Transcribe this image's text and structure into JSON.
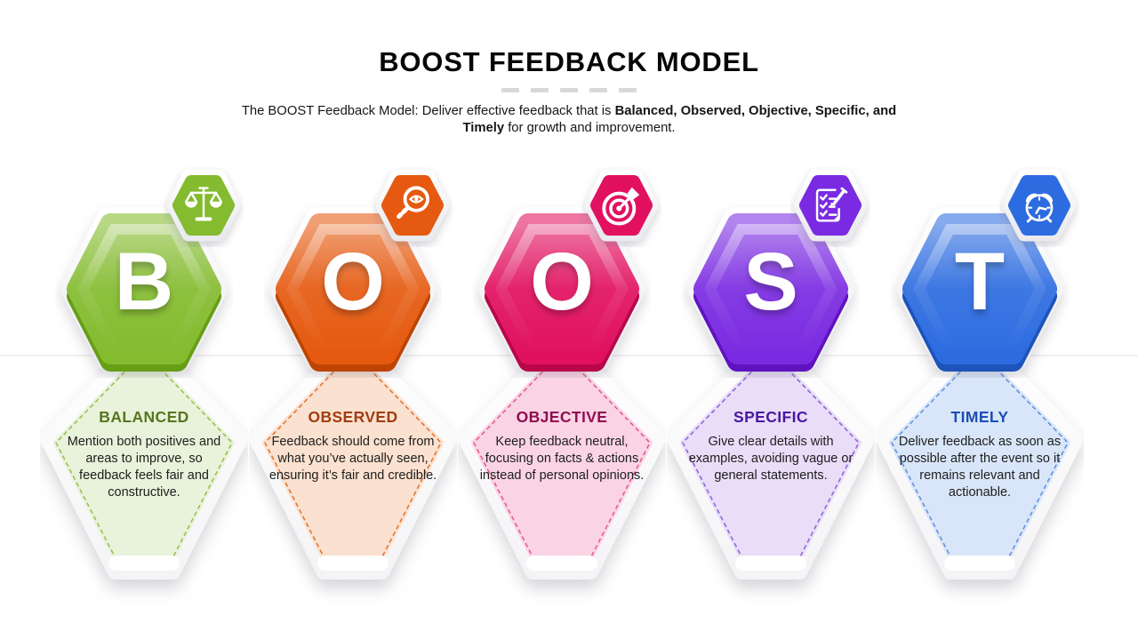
{
  "header": {
    "title": "BOOST FEEDBACK MODEL",
    "subtitle_pre": "The BOOST Feedback Model: Deliver effective feedback that is ",
    "subtitle_bold": "Balanced, Observed, Objective, Specific, and Timely",
    "subtitle_post": " for growth and improvement."
  },
  "columns": [
    {
      "letter": "B",
      "title": "BALANCED",
      "text": "Mention both positives and areas to improve, so feedback feels fair and constructive.",
      "icon": "scales-icon",
      "colors": {
        "main": "#84BB2F",
        "dark": "#669E15",
        "bodybg": "#E9F2DA",
        "dashc": "#92BF4C",
        "titlec": "#55771E"
      }
    },
    {
      "letter": "O",
      "title": "OBSERVED",
      "text": "Feedback should come from what you’ve actually seen, ensuring it’s fair and credible.",
      "icon": "magnifier-eye-icon",
      "colors": {
        "main": "#E55A10",
        "dark": "#BE4404",
        "bodybg": "#FBE1CF",
        "dashc": "#E2702E",
        "titlec": "#A03D12"
      }
    },
    {
      "letter": "O",
      "title": "OBJECTIVE",
      "text": "Keep feedback neutral, focusing on facts & actions instead of personal opinions.",
      "icon": "target-dart-icon",
      "colors": {
        "main": "#E1115F",
        "dark": "#B90648",
        "bodybg": "#FAD4E4",
        "dashc": "#E35590",
        "titlec": "#8F0E53"
      }
    },
    {
      "letter": "S",
      "title": "SPECIFIC",
      "text": "Give clear details with examples, avoiding vague or general statements.",
      "icon": "checklist-pencil-icon",
      "colors": {
        "main": "#7A2BE1",
        "dark": "#5F13BF",
        "bodybg": "#E9DDF8",
        "dashc": "#8B5FD9",
        "titlec": "#48189F"
      }
    },
    {
      "letter": "T",
      "title": "TIMELY",
      "text": "Deliver feedback as soon as possible after the event so it remains relevant and actionable.",
      "icon": "alarm-clock-icon",
      "colors": {
        "main": "#2D6CE0",
        "dark": "#1D53BA",
        "bodybg": "#D9E6F9",
        "dashc": "#5D8DDA",
        "titlec": "#1C4EB5"
      }
    }
  ]
}
